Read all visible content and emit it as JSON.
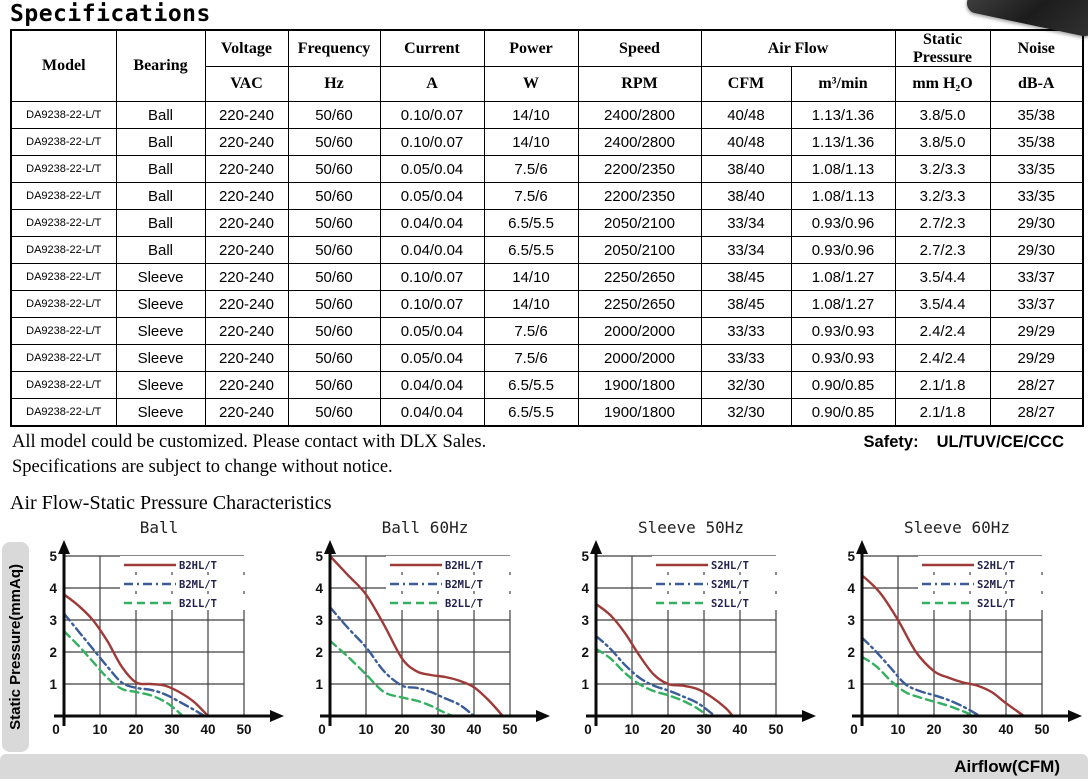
{
  "page": {
    "title": "Specifications"
  },
  "table": {
    "column_keys": [
      "model",
      "bearing",
      "voltage",
      "frequency",
      "current",
      "power",
      "speed",
      "airflow-cfm",
      "airflow-m3",
      "static-pressure",
      "noise"
    ],
    "group_headers": {
      "model": "Model",
      "bearing": "Bearing",
      "voltage": "Voltage",
      "frequency": "Frequency",
      "current": "Current",
      "power": "Power",
      "speed": "Speed",
      "air_flow": "Air Flow",
      "static_pressure": "Static Pressure",
      "noise": "Noise"
    },
    "units": {
      "voltage": "VAC",
      "frequency": "Hz",
      "current": "A",
      "power": "W",
      "speed": "RPM",
      "air_flow_cfm": "CFM",
      "air_flow_m3": "m³/min",
      "static_pressure": "mm H₂O",
      "noise": "dB-A"
    },
    "rows": [
      [
        "DA9238-22-L/T",
        "Ball",
        "220-240",
        "50/60",
        "0.10/0.07",
        "14/10",
        "2400/2800",
        "40/48",
        "1.13/1.36",
        "3.8/5.0",
        "35/38"
      ],
      [
        "DA9238-22-L/T",
        "Ball",
        "220-240",
        "50/60",
        "0.10/0.07",
        "14/10",
        "2400/2800",
        "40/48",
        "1.13/1.36",
        "3.8/5.0",
        "35/38"
      ],
      [
        "DA9238-22-L/T",
        "Ball",
        "220-240",
        "50/60",
        "0.05/0.04",
        "7.5/6",
        "2200/2350",
        "38/40",
        "1.08/1.13",
        "3.2/3.3",
        "33/35"
      ],
      [
        "DA9238-22-L/T",
        "Ball",
        "220-240",
        "50/60",
        "0.05/0.04",
        "7.5/6",
        "2200/2350",
        "38/40",
        "1.08/1.13",
        "3.2/3.3",
        "33/35"
      ],
      [
        "DA9238-22-L/T",
        "Ball",
        "220-240",
        "50/60",
        "0.04/0.04",
        "6.5/5.5",
        "2050/2100",
        "33/34",
        "0.93/0.96",
        "2.7/2.3",
        "29/30"
      ],
      [
        "DA9238-22-L/T",
        "Ball",
        "220-240",
        "50/60",
        "0.04/0.04",
        "6.5/5.5",
        "2050/2100",
        "33/34",
        "0.93/0.96",
        "2.7/2.3",
        "29/30"
      ],
      [
        "DA9238-22-L/T",
        "Sleeve",
        "220-240",
        "50/60",
        "0.10/0.07",
        "14/10",
        "2250/2650",
        "38/45",
        "1.08/1.27",
        "3.5/4.4",
        "33/37"
      ],
      [
        "DA9238-22-L/T",
        "Sleeve",
        "220-240",
        "50/60",
        "0.10/0.07",
        "14/10",
        "2250/2650",
        "38/45",
        "1.08/1.27",
        "3.5/4.4",
        "33/37"
      ],
      [
        "DA9238-22-L/T",
        "Sleeve",
        "220-240",
        "50/60",
        "0.05/0.04",
        "7.5/6",
        "2000/2000",
        "33/33",
        "0.93/0.93",
        "2.4/2.4",
        "29/29"
      ],
      [
        "DA9238-22-L/T",
        "Sleeve",
        "220-240",
        "50/60",
        "0.05/0.04",
        "7.5/6",
        "2000/2000",
        "33/33",
        "0.93/0.93",
        "2.4/2.4",
        "29/29"
      ],
      [
        "DA9238-22-L/T",
        "Sleeve",
        "220-240",
        "50/60",
        "0.04/0.04",
        "6.5/5.5",
        "1900/1800",
        "32/30",
        "0.90/0.85",
        "2.1/1.8",
        "28/27"
      ],
      [
        "DA9238-22-L/T",
        "Sleeve",
        "220-240",
        "50/60",
        "0.04/0.04",
        "6.5/5.5",
        "1900/1800",
        "32/30",
        "0.90/0.85",
        "2.1/1.8",
        "28/27"
      ]
    ]
  },
  "notes": {
    "line1": "All model could be customized. Please contact with DLX Sales.",
    "line2": "Specifications are subject to change without notice.",
    "safety_label": "Safety:",
    "safety_value": "UL/TUV/CE/CCC"
  },
  "charts_section": {
    "heading": "Air Flow-Static Pressure Characteristics",
    "y_axis_label": "Static Pressure(mmAq)",
    "x_axis_label": "Airflow(CFM)"
  },
  "chart_data": [
    {
      "type": "line",
      "title": "Ball",
      "xlabel": "Airflow(CFM)",
      "ylabel": "Static Pressure(mmAq)",
      "xlim": [
        0,
        50
      ],
      "ylim": [
        0,
        5
      ],
      "x_ticks": [
        0,
        10,
        20,
        30,
        40,
        50
      ],
      "y_ticks": [
        0,
        1,
        2,
        3,
        4,
        5
      ],
      "grid": true,
      "legend_position": "top-right",
      "series": [
        {
          "name": "B2HL/T",
          "style": "solid",
          "color": "#9e3a38",
          "points": [
            [
              0,
              3.8
            ],
            [
              4,
              3.45
            ],
            [
              8,
              3.0
            ],
            [
              12,
              2.35
            ],
            [
              16,
              1.55
            ],
            [
              20,
              1.05
            ],
            [
              24,
              1.0
            ],
            [
              28,
              0.95
            ],
            [
              32,
              0.75
            ],
            [
              36,
              0.45
            ],
            [
              40,
              0
            ]
          ]
        },
        {
          "name": "B2ML/T",
          "style": "dashdot",
          "color": "#3a5d99",
          "points": [
            [
              0,
              3.2
            ],
            [
              4,
              2.65
            ],
            [
              8,
              2.1
            ],
            [
              12,
              1.55
            ],
            [
              16,
              1.05
            ],
            [
              20,
              0.88
            ],
            [
              24,
              0.82
            ],
            [
              28,
              0.68
            ],
            [
              32,
              0.45
            ],
            [
              36,
              0.2
            ],
            [
              39,
              0
            ]
          ]
        },
        {
          "name": "B2LL/T",
          "style": "dash",
          "color": "#33b060",
          "points": [
            [
              0,
              2.65
            ],
            [
              4,
              2.2
            ],
            [
              8,
              1.7
            ],
            [
              12,
              1.2
            ],
            [
              16,
              0.85
            ],
            [
              20,
              0.75
            ],
            [
              24,
              0.65
            ],
            [
              28,
              0.45
            ],
            [
              31,
              0.2
            ],
            [
              33,
              0
            ]
          ]
        }
      ]
    },
    {
      "type": "line",
      "title": "Ball 60Hz",
      "xlabel": "Airflow(CFM)",
      "ylabel": "Static Pressure(mmAq)",
      "xlim": [
        0,
        50
      ],
      "ylim": [
        0,
        5
      ],
      "x_ticks": [
        0,
        10,
        20,
        30,
        40,
        50
      ],
      "y_ticks": [
        0,
        1,
        2,
        3,
        4,
        5
      ],
      "grid": true,
      "legend_position": "top-right",
      "series": [
        {
          "name": "B2HL/T",
          "style": "solid",
          "color": "#9e3a38",
          "points": [
            [
              0,
              5.0
            ],
            [
              5,
              4.4
            ],
            [
              10,
              3.8
            ],
            [
              15,
              2.85
            ],
            [
              20,
              1.8
            ],
            [
              24,
              1.4
            ],
            [
              28,
              1.28
            ],
            [
              32,
              1.22
            ],
            [
              36,
              1.1
            ],
            [
              40,
              0.9
            ],
            [
              44,
              0.5
            ],
            [
              48,
              0
            ]
          ]
        },
        {
          "name": "B2ML/T",
          "style": "dashdot",
          "color": "#3a5d99",
          "points": [
            [
              0,
              3.4
            ],
            [
              5,
              2.75
            ],
            [
              10,
              2.15
            ],
            [
              15,
              1.4
            ],
            [
              20,
              0.95
            ],
            [
              24,
              0.88
            ],
            [
              28,
              0.75
            ],
            [
              32,
              0.55
            ],
            [
              36,
              0.35
            ],
            [
              40,
              0
            ]
          ]
        },
        {
          "name": "B2LL/T",
          "style": "dash",
          "color": "#33b060",
          "points": [
            [
              0,
              2.35
            ],
            [
              5,
              1.85
            ],
            [
              10,
              1.3
            ],
            [
              15,
              0.75
            ],
            [
              20,
              0.58
            ],
            [
              24,
              0.48
            ],
            [
              28,
              0.32
            ],
            [
              31,
              0.15
            ],
            [
              34,
              0
            ]
          ]
        }
      ]
    },
    {
      "type": "line",
      "title": "Sleeve 50Hz",
      "xlabel": "Airflow(CFM)",
      "ylabel": "Static Pressure(mmAq)",
      "xlim": [
        0,
        50
      ],
      "ylim": [
        0,
        5
      ],
      "x_ticks": [
        0,
        10,
        20,
        30,
        40,
        50
      ],
      "y_ticks": [
        0,
        1,
        2,
        3,
        4,
        5
      ],
      "grid": true,
      "legend_position": "top-right",
      "series": [
        {
          "name": "S2HL/T",
          "style": "solid",
          "color": "#9e3a38",
          "points": [
            [
              0,
              3.5
            ],
            [
              4,
              3.15
            ],
            [
              8,
              2.6
            ],
            [
              12,
              1.9
            ],
            [
              16,
              1.3
            ],
            [
              20,
              1.0
            ],
            [
              24,
              0.95
            ],
            [
              28,
              0.85
            ],
            [
              32,
              0.6
            ],
            [
              36,
              0.25
            ],
            [
              38,
              0
            ]
          ]
        },
        {
          "name": "S2ML/T",
          "style": "dashdot",
          "color": "#3a5d99",
          "points": [
            [
              0,
              2.5
            ],
            [
              4,
              2.1
            ],
            [
              8,
              1.6
            ],
            [
              12,
              1.2
            ],
            [
              16,
              0.95
            ],
            [
              20,
              0.8
            ],
            [
              24,
              0.62
            ],
            [
              28,
              0.42
            ],
            [
              31,
              0.18
            ],
            [
              33,
              0
            ]
          ]
        },
        {
          "name": "S2LL/T",
          "style": "dash",
          "color": "#33b060",
          "points": [
            [
              0,
              2.1
            ],
            [
              4,
              1.8
            ],
            [
              8,
              1.35
            ],
            [
              12,
              1.0
            ],
            [
              16,
              0.78
            ],
            [
              20,
              0.65
            ],
            [
              24,
              0.48
            ],
            [
              28,
              0.25
            ],
            [
              31,
              0
            ]
          ]
        }
      ]
    },
    {
      "type": "line",
      "title": "Sleeve 60Hz",
      "xlabel": "Airflow(CFM)",
      "ylabel": "Static Pressure(mmAq)",
      "xlim": [
        0,
        50
      ],
      "ylim": [
        0,
        5
      ],
      "x_ticks": [
        0,
        10,
        20,
        30,
        40,
        50
      ],
      "y_ticks": [
        0,
        1,
        2,
        3,
        4,
        5
      ],
      "grid": true,
      "legend_position": "top-right",
      "series": [
        {
          "name": "S2HL/T",
          "style": "solid",
          "color": "#9e3a38",
          "points": [
            [
              0,
              4.4
            ],
            [
              5,
              3.85
            ],
            [
              10,
              3.0
            ],
            [
              15,
              2.0
            ],
            [
              20,
              1.4
            ],
            [
              24,
              1.2
            ],
            [
              28,
              1.05
            ],
            [
              32,
              0.95
            ],
            [
              36,
              0.75
            ],
            [
              40,
              0.4
            ],
            [
              45,
              0
            ]
          ]
        },
        {
          "name": "S2ML/T",
          "style": "dashdot",
          "color": "#3a5d99",
          "points": [
            [
              0,
              2.45
            ],
            [
              4,
              2.0
            ],
            [
              8,
              1.5
            ],
            [
              12,
              1.0
            ],
            [
              16,
              0.78
            ],
            [
              20,
              0.65
            ],
            [
              24,
              0.5
            ],
            [
              28,
              0.3
            ],
            [
              32,
              0.05
            ]
          ]
        },
        {
          "name": "S2LL/T",
          "style": "dash",
          "color": "#33b060",
          "points": [
            [
              0,
              1.85
            ],
            [
              4,
              1.55
            ],
            [
              8,
              1.1
            ],
            [
              12,
              0.75
            ],
            [
              16,
              0.58
            ],
            [
              20,
              0.45
            ],
            [
              24,
              0.32
            ],
            [
              28,
              0.15
            ],
            [
              31,
              0
            ]
          ]
        }
      ]
    }
  ]
}
